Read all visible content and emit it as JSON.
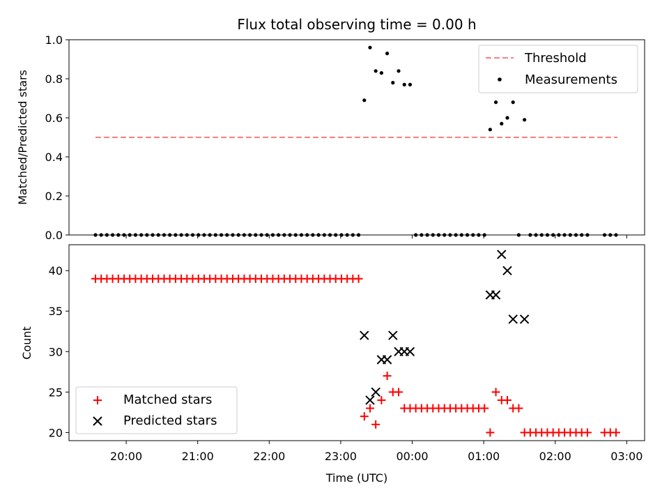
{
  "title": "Flux total observing time = 0.00 h",
  "chart_data": [
    {
      "type": "scatter",
      "ylabel": "Matched/Predicted stars",
      "xlim": [
        19.2,
        27.25
      ],
      "ylim": [
        0,
        1.0
      ],
      "yticks": [
        "0.0",
        "0.2",
        "0.4",
        "0.6",
        "0.8",
        "1.0"
      ],
      "legend": {
        "placement": "top-right",
        "threshold_label": "Threshold",
        "measurements_label": "Measurements"
      },
      "threshold": {
        "value": 0.5,
        "x_start": 19.57,
        "x_end": 26.87,
        "color": "#ff7f7f"
      },
      "measurement_color": "#000000",
      "measurements": [
        {
          "x": 19.57,
          "y": 0
        },
        {
          "x": 19.65,
          "y": 0
        },
        {
          "x": 19.73,
          "y": 0
        },
        {
          "x": 19.81,
          "y": 0
        },
        {
          "x": 19.89,
          "y": 0
        },
        {
          "x": 19.97,
          "y": 0
        },
        {
          "x": 20.05,
          "y": 0
        },
        {
          "x": 20.13,
          "y": 0
        },
        {
          "x": 20.21,
          "y": 0
        },
        {
          "x": 20.29,
          "y": 0
        },
        {
          "x": 20.37,
          "y": 0
        },
        {
          "x": 20.45,
          "y": 0
        },
        {
          "x": 20.53,
          "y": 0
        },
        {
          "x": 20.61,
          "y": 0
        },
        {
          "x": 20.69,
          "y": 0
        },
        {
          "x": 20.77,
          "y": 0
        },
        {
          "x": 20.85,
          "y": 0
        },
        {
          "x": 20.93,
          "y": 0
        },
        {
          "x": 21.01,
          "y": 0
        },
        {
          "x": 21.09,
          "y": 0
        },
        {
          "x": 21.17,
          "y": 0
        },
        {
          "x": 21.25,
          "y": 0
        },
        {
          "x": 21.33,
          "y": 0
        },
        {
          "x": 21.41,
          "y": 0
        },
        {
          "x": 21.49,
          "y": 0
        },
        {
          "x": 21.57,
          "y": 0
        },
        {
          "x": 21.65,
          "y": 0
        },
        {
          "x": 21.73,
          "y": 0
        },
        {
          "x": 21.81,
          "y": 0
        },
        {
          "x": 21.89,
          "y": 0
        },
        {
          "x": 21.97,
          "y": 0
        },
        {
          "x": 22.05,
          "y": 0
        },
        {
          "x": 22.13,
          "y": 0
        },
        {
          "x": 22.21,
          "y": 0
        },
        {
          "x": 22.29,
          "y": 0
        },
        {
          "x": 22.37,
          "y": 0
        },
        {
          "x": 22.45,
          "y": 0
        },
        {
          "x": 22.53,
          "y": 0
        },
        {
          "x": 22.61,
          "y": 0
        },
        {
          "x": 22.69,
          "y": 0
        },
        {
          "x": 22.77,
          "y": 0
        },
        {
          "x": 22.85,
          "y": 0
        },
        {
          "x": 22.93,
          "y": 0
        },
        {
          "x": 23.01,
          "y": 0
        },
        {
          "x": 23.09,
          "y": 0
        },
        {
          "x": 23.17,
          "y": 0
        },
        {
          "x": 23.25,
          "y": 0
        },
        {
          "x": 23.33,
          "y": 0.69
        },
        {
          "x": 23.41,
          "y": 0.96
        },
        {
          "x": 23.49,
          "y": 0.84
        },
        {
          "x": 23.57,
          "y": 0.83
        },
        {
          "x": 23.65,
          "y": 0.93
        },
        {
          "x": 23.73,
          "y": 0.78
        },
        {
          "x": 23.81,
          "y": 0.84
        },
        {
          "x": 23.89,
          "y": 0.77
        },
        {
          "x": 23.97,
          "y": 0.77
        },
        {
          "x": 24.05,
          "y": 0
        },
        {
          "x": 24.13,
          "y": 0
        },
        {
          "x": 24.21,
          "y": 0
        },
        {
          "x": 24.29,
          "y": 0
        },
        {
          "x": 24.37,
          "y": 0
        },
        {
          "x": 24.45,
          "y": 0
        },
        {
          "x": 24.53,
          "y": 0
        },
        {
          "x": 24.61,
          "y": 0
        },
        {
          "x": 24.69,
          "y": 0
        },
        {
          "x": 24.77,
          "y": 0
        },
        {
          "x": 24.85,
          "y": 0
        },
        {
          "x": 24.93,
          "y": 0
        },
        {
          "x": 25.01,
          "y": 0
        },
        {
          "x": 25.09,
          "y": 0.54
        },
        {
          "x": 25.17,
          "y": 0.68
        },
        {
          "x": 25.25,
          "y": 0.57
        },
        {
          "x": 25.33,
          "y": 0.6
        },
        {
          "x": 25.41,
          "y": 0.68
        },
        {
          "x": 25.49,
          "y": 0
        },
        {
          "x": 25.57,
          "y": 0.59
        },
        {
          "x": 25.65,
          "y": 0
        },
        {
          "x": 25.73,
          "y": 0
        },
        {
          "x": 25.81,
          "y": 0
        },
        {
          "x": 25.89,
          "y": 0
        },
        {
          "x": 25.97,
          "y": 0
        },
        {
          "x": 26.05,
          "y": 0
        },
        {
          "x": 26.13,
          "y": 0
        },
        {
          "x": 26.21,
          "y": 0
        },
        {
          "x": 26.29,
          "y": 0
        },
        {
          "x": 26.37,
          "y": 0
        },
        {
          "x": 26.45,
          "y": 0
        },
        {
          "x": 26.69,
          "y": 0
        },
        {
          "x": 26.77,
          "y": 0
        },
        {
          "x": 26.85,
          "y": 0
        }
      ]
    },
    {
      "type": "scatter",
      "ylabel": "Count",
      "xlabel": "Time (UTC)",
      "xlim": [
        19.2,
        27.25
      ],
      "ylim": [
        19,
        43.2
      ],
      "yticks": [
        20,
        25,
        30,
        35,
        40
      ],
      "xticks": [
        {
          "x": 20,
          "label": "20:00"
        },
        {
          "x": 21,
          "label": "21:00"
        },
        {
          "x": 22,
          "label": "22:00"
        },
        {
          "x": 23,
          "label": "23:00"
        },
        {
          "x": 24,
          "label": "00:00"
        },
        {
          "x": 25,
          "label": "01:00"
        },
        {
          "x": 26,
          "label": "02:00"
        },
        {
          "x": 27,
          "label": "03:00"
        }
      ],
      "legend": {
        "placement": "lower-left"
      },
      "series": [
        {
          "name": "Matched stars",
          "marker": "plus",
          "color": "#ff0000",
          "points": [
            {
              "x": 19.57,
              "y": 39
            },
            {
              "x": 19.65,
              "y": 39
            },
            {
              "x": 19.73,
              "y": 39
            },
            {
              "x": 19.81,
              "y": 39
            },
            {
              "x": 19.89,
              "y": 39
            },
            {
              "x": 19.97,
              "y": 39
            },
            {
              "x": 20.05,
              "y": 39
            },
            {
              "x": 20.13,
              "y": 39
            },
            {
              "x": 20.21,
              "y": 39
            },
            {
              "x": 20.29,
              "y": 39
            },
            {
              "x": 20.37,
              "y": 39
            },
            {
              "x": 20.45,
              "y": 39
            },
            {
              "x": 20.53,
              "y": 39
            },
            {
              "x": 20.61,
              "y": 39
            },
            {
              "x": 20.69,
              "y": 39
            },
            {
              "x": 20.77,
              "y": 39
            },
            {
              "x": 20.85,
              "y": 39
            },
            {
              "x": 20.93,
              "y": 39
            },
            {
              "x": 21.01,
              "y": 39
            },
            {
              "x": 21.09,
              "y": 39
            },
            {
              "x": 21.17,
              "y": 39
            },
            {
              "x": 21.25,
              "y": 39
            },
            {
              "x": 21.33,
              "y": 39
            },
            {
              "x": 21.41,
              "y": 39
            },
            {
              "x": 21.49,
              "y": 39
            },
            {
              "x": 21.57,
              "y": 39
            },
            {
              "x": 21.65,
              "y": 39
            },
            {
              "x": 21.73,
              "y": 39
            },
            {
              "x": 21.81,
              "y": 39
            },
            {
              "x": 21.89,
              "y": 39
            },
            {
              "x": 21.97,
              "y": 39
            },
            {
              "x": 22.05,
              "y": 39
            },
            {
              "x": 22.13,
              "y": 39
            },
            {
              "x": 22.21,
              "y": 39
            },
            {
              "x": 22.29,
              "y": 39
            },
            {
              "x": 22.37,
              "y": 39
            },
            {
              "x": 22.45,
              "y": 39
            },
            {
              "x": 22.53,
              "y": 39
            },
            {
              "x": 22.61,
              "y": 39
            },
            {
              "x": 22.69,
              "y": 39
            },
            {
              "x": 22.77,
              "y": 39
            },
            {
              "x": 22.85,
              "y": 39
            },
            {
              "x": 22.93,
              "y": 39
            },
            {
              "x": 23.01,
              "y": 39
            },
            {
              "x": 23.09,
              "y": 39
            },
            {
              "x": 23.17,
              "y": 39
            },
            {
              "x": 23.25,
              "y": 39
            },
            {
              "x": 23.33,
              "y": 22
            },
            {
              "x": 23.41,
              "y": 23
            },
            {
              "x": 23.49,
              "y": 21
            },
            {
              "x": 23.57,
              "y": 24
            },
            {
              "x": 23.65,
              "y": 27
            },
            {
              "x": 23.73,
              "y": 25
            },
            {
              "x": 23.81,
              "y": 25
            },
            {
              "x": 23.89,
              "y": 23
            },
            {
              "x": 23.97,
              "y": 23
            },
            {
              "x": 24.05,
              "y": 23
            },
            {
              "x": 24.13,
              "y": 23
            },
            {
              "x": 24.21,
              "y": 23
            },
            {
              "x": 24.29,
              "y": 23
            },
            {
              "x": 24.37,
              "y": 23
            },
            {
              "x": 24.45,
              "y": 23
            },
            {
              "x": 24.53,
              "y": 23
            },
            {
              "x": 24.61,
              "y": 23
            },
            {
              "x": 24.69,
              "y": 23
            },
            {
              "x": 24.77,
              "y": 23
            },
            {
              "x": 24.85,
              "y": 23
            },
            {
              "x": 24.93,
              "y": 23
            },
            {
              "x": 25.01,
              "y": 23
            },
            {
              "x": 25.09,
              "y": 20
            },
            {
              "x": 25.17,
              "y": 25
            },
            {
              "x": 25.25,
              "y": 24
            },
            {
              "x": 25.33,
              "y": 24
            },
            {
              "x": 25.41,
              "y": 23
            },
            {
              "x": 25.49,
              "y": 23
            },
            {
              "x": 25.57,
              "y": 20
            },
            {
              "x": 25.65,
              "y": 20
            },
            {
              "x": 25.73,
              "y": 20
            },
            {
              "x": 25.81,
              "y": 20
            },
            {
              "x": 25.89,
              "y": 20
            },
            {
              "x": 25.97,
              "y": 20
            },
            {
              "x": 26.05,
              "y": 20
            },
            {
              "x": 26.13,
              "y": 20
            },
            {
              "x": 26.21,
              "y": 20
            },
            {
              "x": 26.29,
              "y": 20
            },
            {
              "x": 26.37,
              "y": 20
            },
            {
              "x": 26.45,
              "y": 20
            },
            {
              "x": 26.69,
              "y": 20
            },
            {
              "x": 26.77,
              "y": 20
            },
            {
              "x": 26.85,
              "y": 20
            }
          ]
        },
        {
          "name": "Predicted stars",
          "marker": "x",
          "color": "#000000",
          "points": [
            {
              "x": 23.33,
              "y": 32
            },
            {
              "x": 23.41,
              "y": 24
            },
            {
              "x": 23.49,
              "y": 25
            },
            {
              "x": 23.57,
              "y": 29
            },
            {
              "x": 23.65,
              "y": 29
            },
            {
              "x": 23.73,
              "y": 32
            },
            {
              "x": 23.81,
              "y": 30
            },
            {
              "x": 23.89,
              "y": 30
            },
            {
              "x": 23.97,
              "y": 30
            },
            {
              "x": 25.09,
              "y": 37
            },
            {
              "x": 25.17,
              "y": 37
            },
            {
              "x": 25.25,
              "y": 42
            },
            {
              "x": 25.33,
              "y": 40
            },
            {
              "x": 25.41,
              "y": 34
            },
            {
              "x": 25.57,
              "y": 34
            }
          ]
        }
      ]
    }
  ]
}
